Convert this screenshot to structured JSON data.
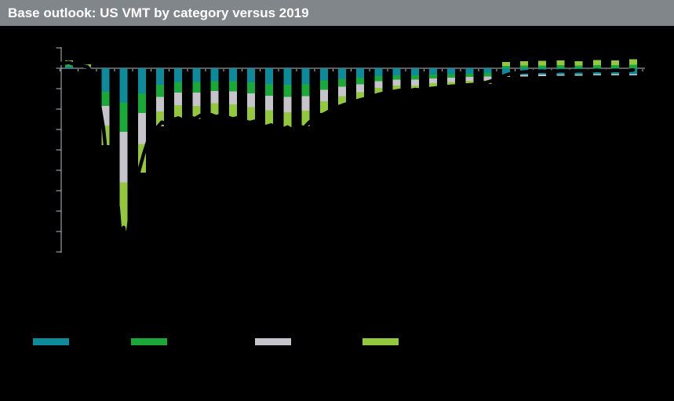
{
  "header": {
    "title": "Base outlook: US VMT by category versus 2019",
    "bar_color": "#81868a",
    "text_color": "#ffffff"
  },
  "colors": {
    "background": "#000000",
    "axis": "#b8bec2",
    "overlay_line": "#000000"
  },
  "legend": {
    "position": "bottom",
    "labels_visible": false,
    "items": [
      {
        "label": "",
        "color": "#0d8b9b"
      },
      {
        "label": "",
        "color": "#1aa838"
      },
      {
        "label": "",
        "color": "#c4c4ca"
      },
      {
        "label": "",
        "color": "#93c83e"
      }
    ]
  },
  "chart_data": {
    "type": "bar",
    "stacked": true,
    "title": "Base outlook: US VMT by category versus 2019",
    "note": "axis tick labels and legend text are rendered black-on-black (not visible); values estimated from gridlines, percent versus 2019",
    "xlabel": "",
    "ylabel": "",
    "ylim": [
      -45,
      5
    ],
    "y_tick_step": 5,
    "x_labels_visible": false,
    "x": [
      1,
      2,
      3,
      4,
      5,
      6,
      7,
      8,
      9,
      10,
      11,
      12,
      13,
      14,
      15,
      16,
      17,
      18,
      19,
      20,
      21,
      22,
      23,
      24,
      25,
      26,
      27,
      28,
      29,
      30,
      31,
      32
    ],
    "series": [
      {
        "name": "series-teal",
        "color": "#0d8b9b",
        "values": [
          0.4,
          0.2,
          -5.8,
          -8.4,
          -6.2,
          -4.0,
          -3.4,
          -3.4,
          -3.2,
          -3.2,
          -3.5,
          -3.8,
          -4.0,
          -3.8,
          -3.0,
          -2.6,
          -2.3,
          -1.9,
          -1.7,
          -1.7,
          -1.5,
          -1.4,
          -1.3,
          -1.2,
          -1.6,
          -1.6,
          -1.5,
          -1.5,
          -1.5,
          -1.4,
          -1.4,
          -1.4
        ]
      },
      {
        "name": "series-green",
        "color": "#1aa838",
        "values": [
          0.5,
          0.3,
          -3.4,
          -7.2,
          -4.8,
          -3.0,
          -2.6,
          -2.6,
          -2.4,
          -2.5,
          -2.7,
          -2.9,
          -3.0,
          -3.0,
          -2.3,
          -1.9,
          -1.6,
          -1.3,
          -1.1,
          -1.1,
          -1.0,
          -0.9,
          -0.8,
          -0.8,
          0.6,
          0.7,
          0.7,
          0.8,
          0.7,
          0.8,
          0.8,
          0.9
        ]
      },
      {
        "name": "series-gray",
        "color": "#c4c4ca",
        "values": [
          0.2,
          0.1,
          -4.8,
          -12.4,
          -7.6,
          -3.6,
          -3.0,
          -3.2,
          -3.0,
          -3.1,
          -3.3,
          -3.6,
          -3.8,
          -3.6,
          -2.8,
          -2.3,
          -2.0,
          -1.6,
          -1.4,
          -1.4,
          -1.2,
          -1.1,
          -1.0,
          -0.9,
          -0.5,
          -0.4,
          -0.4,
          -0.3,
          -0.3,
          -0.3,
          -0.3,
          -0.3
        ]
      },
      {
        "name": "series-lime",
        "color": "#93c83e",
        "values": [
          0.8,
          0.4,
          -4.8,
          -12.0,
          -7.0,
          -3.6,
          -3.2,
          -3.2,
          -3.0,
          -3.2,
          -3.5,
          -3.7,
          -4.0,
          -3.8,
          -2.9,
          -2.4,
          -2.1,
          -1.6,
          -1.3,
          -1.4,
          -1.2,
          -1.1,
          -1.0,
          -0.9,
          0.9,
          1.0,
          1.1,
          1.1,
          1.0,
          1.2,
          1.1,
          1.3
        ]
      }
    ],
    "overlay_line": {
      "name": "high-frequency-total-line",
      "color": "#000000",
      "points": [
        [
          0.6,
          1.2
        ],
        [
          1.0,
          1.4
        ],
        [
          1.5,
          0.7
        ],
        [
          2.0,
          0.4
        ],
        [
          2.3,
          -1.5
        ],
        [
          2.6,
          -7.0
        ],
        [
          2.9,
          -15.0
        ],
        [
          3.1,
          -24.0
        ],
        [
          3.3,
          -33.0
        ],
        [
          3.5,
          -38.0
        ],
        [
          3.7,
          -34.0
        ],
        [
          3.85,
          -42.0
        ],
        [
          4.0,
          -39.0
        ],
        [
          4.15,
          -43.0
        ],
        [
          4.35,
          -36.0
        ],
        [
          4.6,
          -30.0
        ],
        [
          4.85,
          -25.0
        ],
        [
          5.1,
          -21.0
        ],
        [
          5.35,
          -17.5
        ],
        [
          5.6,
          -15.5
        ],
        [
          5.85,
          -14.5
        ],
        [
          6.1,
          -13.2
        ],
        [
          6.4,
          -13.8
        ],
        [
          6.7,
          -12.6
        ],
        [
          7.0,
          -12.2
        ],
        [
          7.3,
          -12.8
        ],
        [
          7.6,
          -11.8
        ],
        [
          7.9,
          -12.4
        ],
        [
          8.2,
          -11.6
        ],
        [
          8.5,
          -12.2
        ],
        [
          8.8,
          -11.4
        ],
        [
          9.1,
          -11.9
        ],
        [
          9.4,
          -11.3
        ],
        [
          9.7,
          -12.0
        ],
        [
          10.0,
          -12.4
        ],
        [
          10.3,
          -12.1
        ],
        [
          10.6,
          -12.8
        ],
        [
          10.9,
          -13.3
        ],
        [
          11.2,
          -13.0
        ],
        [
          11.5,
          -13.8
        ],
        [
          11.8,
          -14.3
        ],
        [
          12.1,
          -13.9
        ],
        [
          12.4,
          -14.6
        ],
        [
          12.7,
          -15.0
        ],
        [
          13.0,
          -14.4
        ],
        [
          13.3,
          -15.2
        ],
        [
          13.6,
          -14.0
        ],
        [
          13.9,
          -14.6
        ],
        [
          14.2,
          -13.2
        ],
        [
          14.5,
          -12.4
        ],
        [
          14.8,
          -11.6
        ],
        [
          15.1,
          -11.0
        ],
        [
          15.4,
          -10.2
        ],
        [
          15.7,
          -9.6
        ],
        [
          16.0,
          -9.1
        ],
        [
          16.4,
          -8.5
        ],
        [
          16.8,
          -8.0
        ],
        [
          17.2,
          -7.5
        ],
        [
          17.6,
          -7.0
        ],
        [
          18.0,
          -6.4
        ],
        [
          18.4,
          -6.0
        ],
        [
          18.8,
          -5.7
        ],
        [
          19.2,
          -5.4
        ],
        [
          19.6,
          -5.6
        ],
        [
          20.0,
          -5.2
        ],
        [
          20.4,
          -5.4
        ],
        [
          20.8,
          -5.0
        ],
        [
          21.2,
          -4.8
        ],
        [
          21.6,
          -4.6
        ],
        [
          22.0,
          -4.4
        ],
        [
          22.4,
          -4.3
        ],
        [
          22.8,
          -4.1
        ],
        [
          23.2,
          -4.0
        ],
        [
          23.6,
          -3.8
        ],
        [
          24.0,
          -3.4
        ],
        [
          24.4,
          -2.8
        ],
        [
          24.8,
          -2.0
        ],
        [
          25.2,
          -1.4
        ],
        [
          25.6,
          -1.1
        ],
        [
          26.0,
          -0.9
        ],
        [
          26.5,
          -0.8
        ],
        [
          27.0,
          -0.7
        ],
        [
          27.5,
          -0.9
        ],
        [
          28.0,
          -0.6
        ],
        [
          28.5,
          -0.8
        ],
        [
          29.0,
          -0.6
        ],
        [
          29.5,
          -0.7
        ],
        [
          30.0,
          -0.5
        ],
        [
          30.5,
          -0.7
        ],
        [
          31.0,
          -0.5
        ],
        [
          31.5,
          -0.6
        ],
        [
          32.0,
          -0.4
        ]
      ]
    },
    "legend_position": "bottom"
  }
}
